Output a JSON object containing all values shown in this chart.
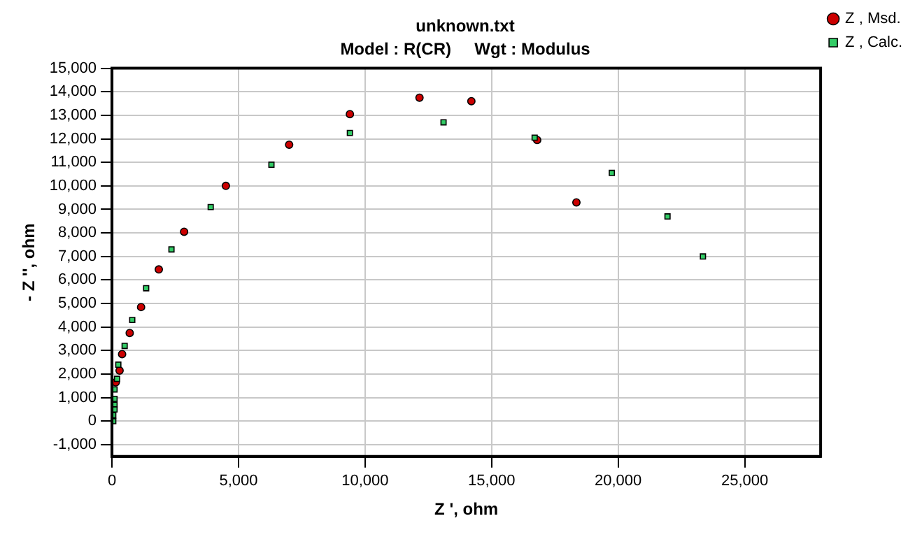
{
  "chart_data": {
    "type": "scatter",
    "title": "unknown.txt",
    "subtitle": "Model : R(CR)     Wgt : Modulus",
    "xlabel": "Z ', ohm",
    "ylabel": "- Z '', ohm",
    "xlim": [
      0,
      28000
    ],
    "xticks": [
      {
        "value": 0,
        "label": "0"
      },
      {
        "value": 5000,
        "label": "5,000"
      },
      {
        "value": 10000,
        "label": "10,000"
      },
      {
        "value": 15000,
        "label": "15,000"
      },
      {
        "value": 20000,
        "label": "20,000"
      },
      {
        "value": 25000,
        "label": "25,000"
      }
    ],
    "ylim": [
      -1500,
      15000
    ],
    "yticks": [
      {
        "value": -1000,
        "label": "-1,000"
      },
      {
        "value": 0,
        "label": "0"
      },
      {
        "value": 1000,
        "label": "1,000"
      },
      {
        "value": 2000,
        "label": "2,000"
      },
      {
        "value": 3000,
        "label": "3,000"
      },
      {
        "value": 4000,
        "label": "4,000"
      },
      {
        "value": 5000,
        "label": "5,000"
      },
      {
        "value": 6000,
        "label": "6,000"
      },
      {
        "value": 7000,
        "label": "7,000"
      },
      {
        "value": 8000,
        "label": "8,000"
      },
      {
        "value": 9000,
        "label": "9,000"
      },
      {
        "value": 10000,
        "label": "10,000"
      },
      {
        "value": 11000,
        "label": "11,000"
      },
      {
        "value": 12000,
        "label": "12,000"
      },
      {
        "value": 13000,
        "label": "13,000"
      },
      {
        "value": 14000,
        "label": "14,000"
      },
      {
        "value": 15000,
        "label": "15,000"
      }
    ],
    "grid": true,
    "legend": "top right",
    "series": [
      {
        "name": "Z , Msd.",
        "color": "#cc0000",
        "marker": "circle",
        "x": [
          18350,
          16800,
          14200,
          12150,
          9400,
          7000,
          4500,
          2850,
          1850,
          1150,
          700,
          400,
          300,
          150
        ],
        "values": [
          9300,
          11950,
          13600,
          13750,
          13050,
          11750,
          10000,
          8050,
          6450,
          4850,
          3750,
          2850,
          2150,
          1650
        ]
      },
      {
        "name": "Z , Calc.",
        "color": "#33cc66",
        "marker": "square",
        "x": [
          23350,
          21950,
          19750,
          16700,
          13100,
          9400,
          6300,
          3900,
          2350,
          1350,
          800,
          500,
          250,
          200,
          100,
          100,
          100,
          100,
          50,
          50
        ],
        "values": [
          7000,
          8700,
          10550,
          12050,
          12700,
          12250,
          10900,
          9100,
          7300,
          5650,
          4300,
          3200,
          2400,
          1800,
          1350,
          950,
          700,
          500,
          250,
          0
        ]
      }
    ]
  }
}
